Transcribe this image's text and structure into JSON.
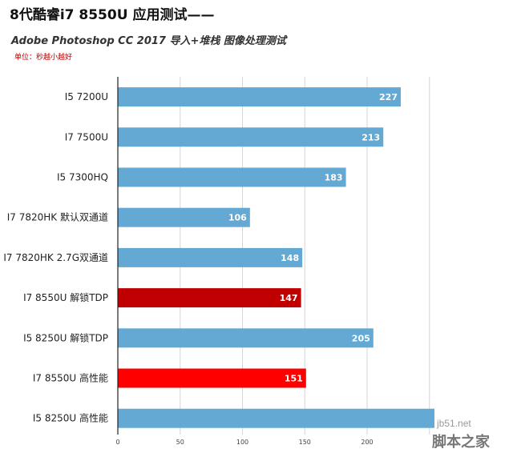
{
  "chart_data": {
    "type": "bar",
    "orientation": "horizontal",
    "title": "8代酷睿i7 8550U 应用测试——",
    "subtitle": "Adobe Photoshop CC 2017 导入+堆栈 图像处理测试",
    "unit_note": "单位：秒越小越好",
    "categories": [
      "I5 7200U",
      "I7 7500U",
      "I5 7300HQ",
      "I7 7820HK 默认双通道",
      "I7 7820HK 2.7G双通道",
      "I7 8550U 解锁TDP",
      "I5 8250U 解锁TDP",
      "I7 8550U 高性能",
      "I5 8250U 高性能"
    ],
    "values": [
      227,
      213,
      183,
      106,
      148,
      147,
      205,
      151,
      254
    ],
    "value_labels": [
      "227",
      "213",
      "183",
      "106",
      "148",
      "147",
      "205",
      "151",
      ""
    ],
    "bar_colors": [
      "#63a9d4",
      "#63a9d4",
      "#63a9d4",
      "#63a9d4",
      "#63a9d4",
      "#c00000",
      "#63a9d4",
      "#ff0000",
      "#63a9d4"
    ],
    "xlim": [
      0,
      300
    ],
    "xticks": [
      0,
      50,
      100,
      150,
      200
    ],
    "grid": true
  },
  "watermark": {
    "line1": "jb51.net",
    "line2": "脚本之家"
  }
}
